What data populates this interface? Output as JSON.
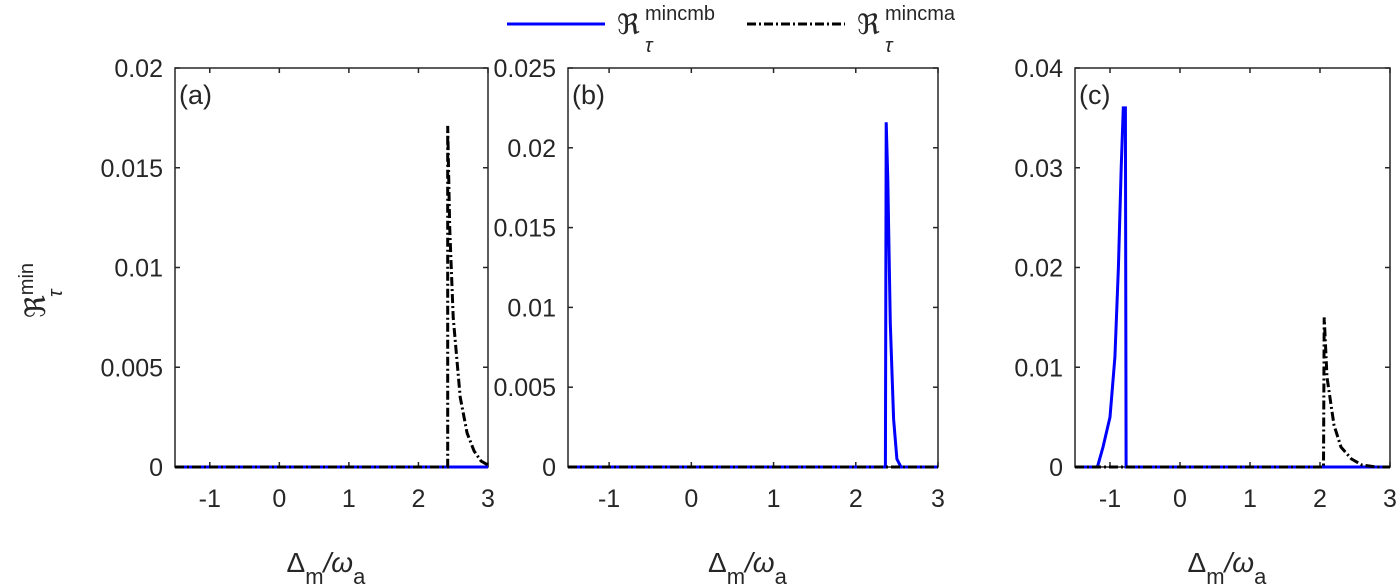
{
  "chart_data": {
    "type": "line",
    "legend": {
      "placement": "top-center",
      "entries": [
        {
          "name": "ℜ_τ^mincmb",
          "base": "ℜ",
          "sub": "τ",
          "sup": "mincmb",
          "color": "#0000ff",
          "style": "solid"
        },
        {
          "name": "ℜ_τ^mincma",
          "base": "ℜ",
          "sub": "τ",
          "sup": "mincma",
          "color": "#000000",
          "style": "dashdot"
        }
      ]
    },
    "ylabel": {
      "base": "ℜ",
      "sub": "τ",
      "sup": "min"
    },
    "xlabel": {
      "base": "Δ",
      "sub1": "m",
      "slash": "/ω",
      "sub2": "a"
    },
    "panels": [
      {
        "label": "(a)",
        "xlim": [
          -1.5,
          3
        ],
        "ylim": [
          0,
          0.02
        ],
        "xticks": [
          -1,
          0,
          1,
          2,
          3
        ],
        "xtick_labels": [
          "-1",
          "0",
          "1",
          "2",
          "3"
        ],
        "yticks": [
          0,
          0.005,
          0.01,
          0.015,
          0.02
        ],
        "ytick_labels": [
          "0",
          "0.005",
          "0.01",
          "0.015",
          "0.02"
        ],
        "series": [
          {
            "name": "mincmb",
            "points": [
              [
                -1.5,
                0
              ],
              [
                3,
                0
              ]
            ]
          },
          {
            "name": "mincma",
            "points": [
              [
                -1.5,
                0
              ],
              [
                2.42,
                0
              ],
              [
                2.42,
                0.0171
              ],
              [
                2.45,
                0.012
              ],
              [
                2.5,
                0.0075
              ],
              [
                2.6,
                0.0035
              ],
              [
                2.7,
                0.0017
              ],
              [
                2.8,
                0.0008
              ],
              [
                2.9,
                0.0003
              ],
              [
                3,
                0.0001
              ]
            ]
          }
        ]
      },
      {
        "label": "(b)",
        "xlim": [
          -1.5,
          3
        ],
        "ylim": [
          0,
          0.025
        ],
        "xticks": [
          -1,
          0,
          1,
          2,
          3
        ],
        "xtick_labels": [
          "-1",
          "0",
          "1",
          "2",
          "3"
        ],
        "yticks": [
          0,
          0.005,
          0.01,
          0.015,
          0.02,
          0.025
        ],
        "ytick_labels": [
          "0",
          "0.005",
          "0.01",
          "0.015",
          "0.02",
          "0.025"
        ],
        "series": [
          {
            "name": "mincmb",
            "points": [
              [
                -1.5,
                0
              ],
              [
                2.36,
                0
              ],
              [
                2.37,
                0.0216
              ],
              [
                2.39,
                0.018
              ],
              [
                2.42,
                0.009
              ],
              [
                2.46,
                0.003
              ],
              [
                2.5,
                0.0005
              ],
              [
                2.55,
                0
              ],
              [
                3,
                0
              ]
            ]
          },
          {
            "name": "mincma",
            "points": [
              [
                -1.5,
                0
              ],
              [
                3,
                0
              ]
            ]
          }
        ]
      },
      {
        "label": "(c)",
        "xlim": [
          -1.5,
          3
        ],
        "ylim": [
          0,
          0.04
        ],
        "xticks": [
          -1,
          0,
          1,
          2,
          3
        ],
        "xtick_labels": [
          "-1",
          "0",
          "1",
          "2",
          "3"
        ],
        "yticks": [
          0,
          0.01,
          0.02,
          0.03,
          0.04
        ],
        "ytick_labels": [
          "0",
          "0.01",
          "0.02",
          "0.03",
          "0.04"
        ],
        "series": [
          {
            "name": "mincmb",
            "points": [
              [
                -1.5,
                0
              ],
              [
                -1.18,
                0
              ],
              [
                -1.1,
                0.002
              ],
              [
                -1.0,
                0.005
              ],
              [
                -0.93,
                0.011
              ],
              [
                -0.88,
                0.02
              ],
              [
                -0.84,
                0.03
              ],
              [
                -0.81,
                0.036
              ],
              [
                -0.78,
                0.036
              ],
              [
                -0.77,
                0
              ],
              [
                3,
                0
              ]
            ]
          },
          {
            "name": "mincma",
            "points": [
              [
                -1.5,
                0
              ],
              [
                2.05,
                0
              ],
              [
                2.06,
                0.015
              ],
              [
                2.1,
                0.009
              ],
              [
                2.2,
                0.0042
              ],
              [
                2.3,
                0.002
              ],
              [
                2.45,
                0.0008
              ],
              [
                2.6,
                0.0002
              ],
              [
                2.8,
                0
              ],
              [
                3,
                0
              ]
            ]
          }
        ]
      }
    ]
  }
}
